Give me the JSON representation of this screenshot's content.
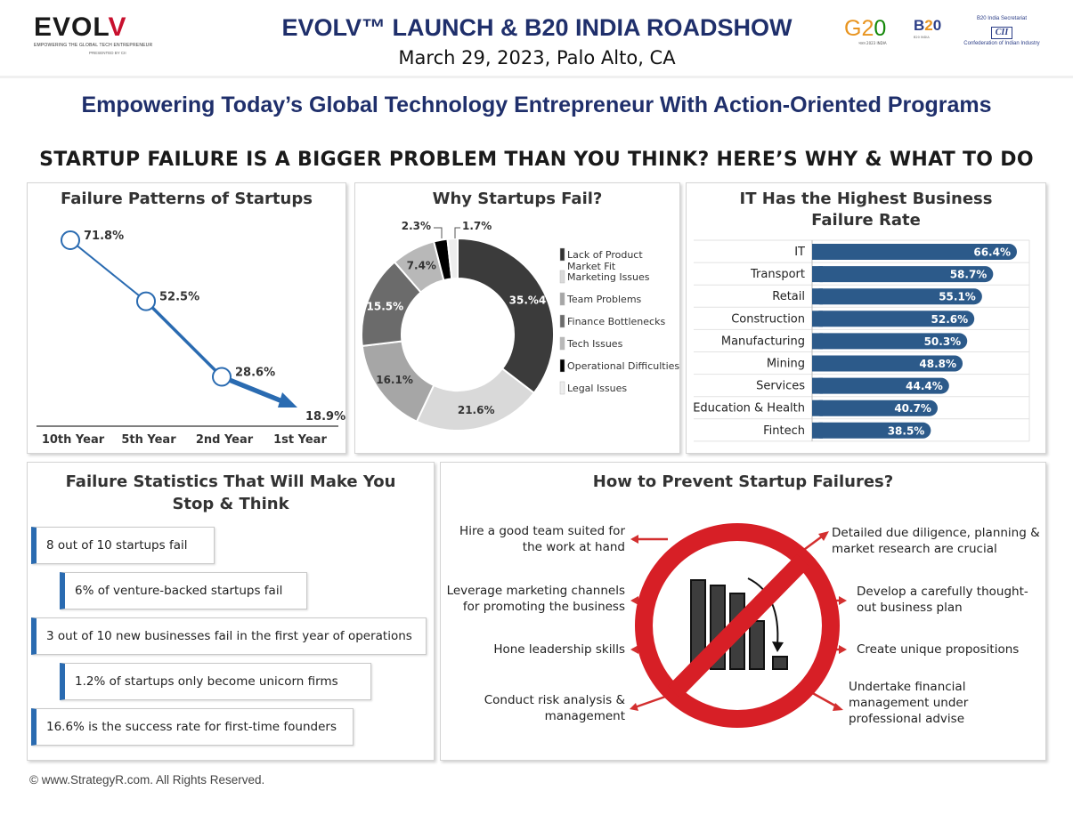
{
  "header": {
    "logo": {
      "word_prefix": "EVOL",
      "word_suffix": "V",
      "tagline": "EMPOWERING THE GLOBAL TECH ENTREPRENEUR",
      "presented_by": "PRESENTED BY CII"
    },
    "title": "EVOLV™ LAUNCH & B20 INDIA ROADSHOW",
    "date": "March 29, 2023, Palo Alto, CA",
    "partner_logos": {
      "g20": {
        "g": "G2",
        "zero": "0",
        "sub": "भारत 2023 INDIA"
      },
      "b20": {
        "b": "B",
        "two": "2",
        "zero": "0",
        "sub": "B20 INDIA"
      },
      "cii": {
        "top": "B20 India Secretariat",
        "mark": "CII",
        "bottom": "Confederation of Indian Industry"
      }
    }
  },
  "subtitle": "Empowering Today’s Global Technology Entrepreneur With Action-Oriented Programs",
  "section_title": "STARTUP FAILURE IS A BIGGER PROBLEM THAN YOU THINK? HERE’S WHY & WHAT TO DO",
  "colors": {
    "blue": "#2a6bb1",
    "navy": "#1f2f6b",
    "bar": "#2c5a8a",
    "red": "#d32f2f"
  },
  "chart_data": [
    {
      "type": "line",
      "title": "Failure Patterns of Startups",
      "categories": [
        "10th Year",
        "5th Year",
        "2nd Year",
        "1st Year"
      ],
      "values": [
        71.8,
        52.5,
        28.6,
        18.9
      ],
      "labels": [
        "71.8%",
        "52.5%",
        "28.6%",
        "18.9%"
      ]
    },
    {
      "type": "pie",
      "title": "Why Startups Fail?",
      "slices": [
        {
          "name": "Lack of Product Market Fit",
          "value": 35.4,
          "label": "35.%4",
          "color": "#3b3b3b"
        },
        {
          "name": "Marketing Issues",
          "value": 21.6,
          "label": "21.6%",
          "color": "#d9d9d9"
        },
        {
          "name": "Team Problems",
          "value": 16.1,
          "label": "16.1%",
          "color": "#a6a6a6"
        },
        {
          "name": "Finance Bottlenecks",
          "value": 15.5,
          "label": "15.5%",
          "color": "#6b6b6b"
        },
        {
          "name": "Tech Issues",
          "value": 7.4,
          "label": "7.4%",
          "color": "#b8b8b8"
        },
        {
          "name": "Operational Difficulties",
          "value": 2.3,
          "label": "2.3%",
          "color": "#000000"
        },
        {
          "name": "Legal Issues",
          "value": 1.7,
          "label": "1.7%",
          "color": "#ededed"
        }
      ],
      "legend_colors": [
        "#333333",
        "#d9d9d9",
        "#a6a6a6",
        "#6b6b6b",
        "#b8b8b8",
        "#000000",
        "#ededed"
      ]
    },
    {
      "type": "bar",
      "orientation": "horizontal",
      "title": "IT Has the Highest Business Failure Rate",
      "title_lines": [
        "IT Has the Highest Business",
        "Failure Rate"
      ],
      "categories": [
        "IT",
        "Transport",
        "Retail",
        "Construction",
        "Manufacturing",
        "Mining",
        "Services",
        "Education & Health",
        "Fintech"
      ],
      "values": [
        66.4,
        58.7,
        55.1,
        52.6,
        50.3,
        48.8,
        44.4,
        40.7,
        38.5
      ],
      "labels": [
        "66.4%",
        "58.7%",
        "55.1%",
        "52.6%",
        "50.3%",
        "48.8%",
        "44.4%",
        "40.7%",
        "38.5%"
      ]
    }
  ],
  "statistics": {
    "title_lines": [
      "Failure Statistics That Will Make You",
      "Stop & Think"
    ],
    "items": [
      "8 out of 10 startups fail",
      "6% of venture-backed startups fail",
      "3 out of 10 new businesses fail in the first year of operations",
      "1.2% of startups only become unicorn firms",
      "16.6% is the success rate for first-time founders"
    ]
  },
  "prevention": {
    "title": "How to Prevent Startup Failures?",
    "left": [
      [
        "Hire a good team suited for",
        "the work at hand"
      ],
      [
        "Leverage marketing channels",
        "for promoting the business"
      ],
      [
        "Hone leadership skills"
      ],
      [
        "Conduct risk analysis &",
        "management"
      ]
    ],
    "right": [
      [
        "Detailed due diligence, planning &",
        "market research are crucial"
      ],
      [
        "Develop a carefully thought-",
        "out business plan"
      ],
      [
        "Create unique propositions"
      ],
      [
        "Undertake financial",
        "management under",
        "professional advise"
      ]
    ]
  },
  "footer": "© www.StrategyR.com. All Rights Reserved."
}
